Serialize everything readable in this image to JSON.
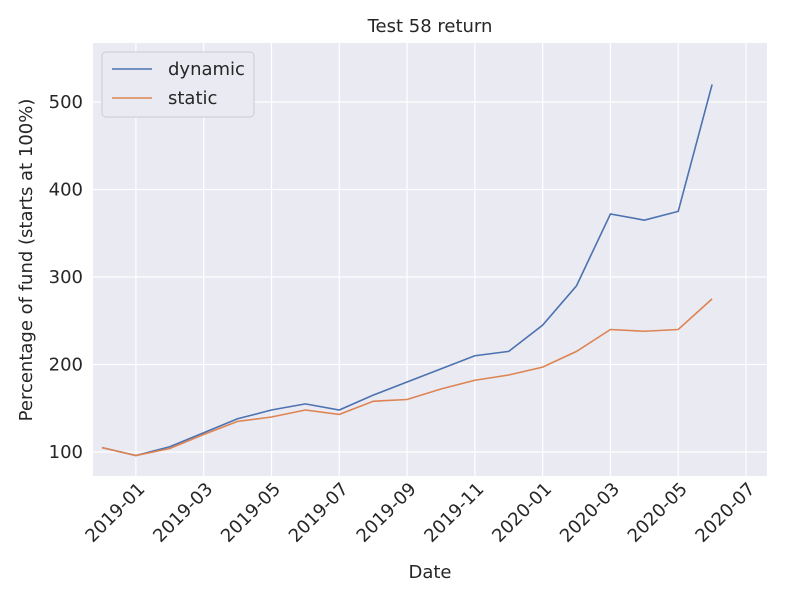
{
  "chart_data": {
    "type": "line",
    "title": "Test 58 return",
    "xlabel": "Date",
    "ylabel": "Percentage of fund (starts at 100%)",
    "x": [
      "2018-12",
      "2019-01",
      "2019-02",
      "2019-03",
      "2019-04",
      "2019-05",
      "2019-06",
      "2019-07",
      "2019-08",
      "2019-09",
      "2019-10",
      "2019-11",
      "2019-12",
      "2020-01",
      "2020-02",
      "2020-03",
      "2020-04",
      "2020-05",
      "2020-06"
    ],
    "series": [
      {
        "name": "dynamic",
        "color": "#4c72b0",
        "values": [
          105,
          96,
          106,
          122,
          138,
          148,
          155,
          148,
          165,
          180,
          195,
          210,
          215,
          245,
          290,
          372,
          365,
          375,
          520
        ]
      },
      {
        "name": "static",
        "color": "#dd8452",
        "values": [
          105,
          96,
          104,
          120,
          135,
          140,
          148,
          143,
          158,
          160,
          172,
          182,
          188,
          197,
          215,
          240,
          238,
          240,
          275
        ]
      }
    ],
    "xlim": [
      "2018-12",
      "2020-07"
    ],
    "xticks": [
      "2019-01",
      "2019-03",
      "2019-05",
      "2019-07",
      "2019-09",
      "2019-11",
      "2020-01",
      "2020-03",
      "2020-05",
      "2020-07"
    ],
    "ylim": [
      72.6,
      567.4
    ],
    "yticks": [
      100,
      200,
      300,
      400,
      500
    ],
    "grid": true,
    "legend": "upper left"
  }
}
